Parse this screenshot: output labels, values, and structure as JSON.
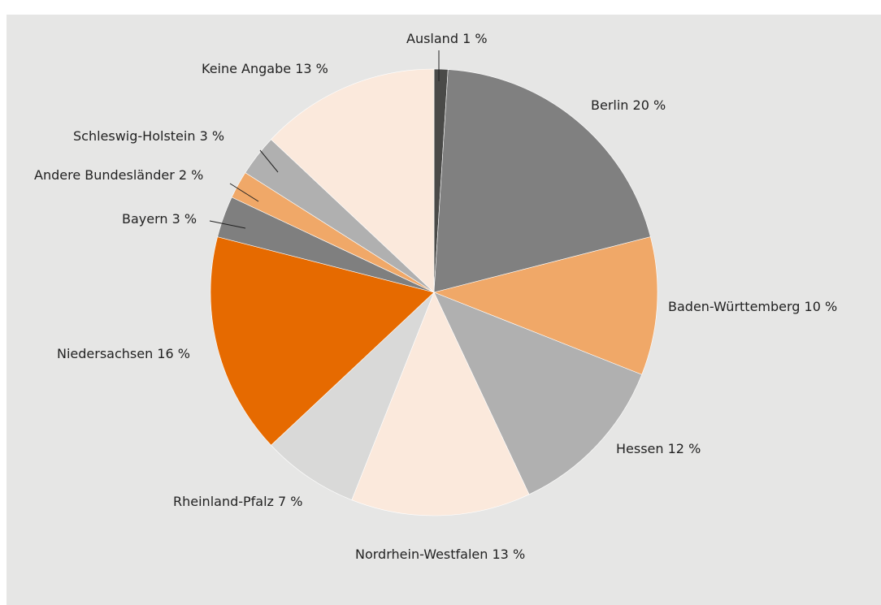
{
  "chart_data": {
    "type": "pie",
    "categories": [
      "Ausland",
      "Berlin",
      "Baden-Württemberg",
      "Hessen",
      "Nordrhein-Westfalen",
      "Rheinland-Pfalz",
      "Niedersachsen",
      "Bayern",
      "Andere Bundesländer",
      "Schleswig-Holstein",
      "Keine Angabe"
    ],
    "values": [
      1,
      20,
      10,
      12,
      13,
      7,
      16,
      3,
      2,
      3,
      13
    ],
    "value_labels": [
      "1 %",
      "20 %",
      "10 %",
      "12 %",
      "13 %",
      "7 %",
      "16 %",
      "3 %",
      "2 %",
      "3 %",
      "13 %"
    ],
    "colors": [
      "#4a4a48",
      "#808080",
      "#f0a868",
      "#b0b0b0",
      "#fbe9dc",
      "#d9d9d8",
      "#e66a00",
      "#7f7f7f",
      "#f0a868",
      "#b0b0b0",
      "#fbe9dc"
    ]
  }
}
